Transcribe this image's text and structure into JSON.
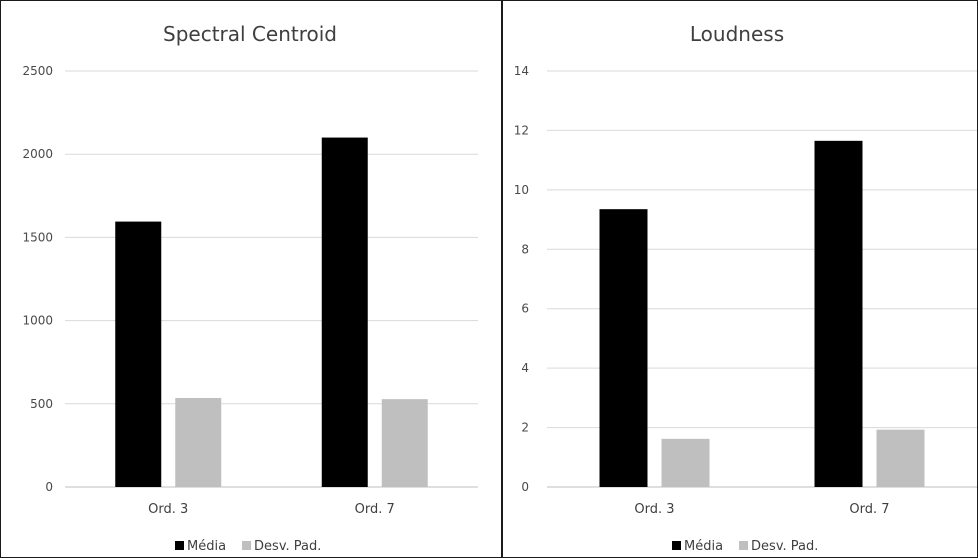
{
  "chart_data": [
    {
      "type": "bar",
      "title": "Spectral Centroid",
      "categories": [
        "Ord. 3",
        "Ord. 7"
      ],
      "series": [
        {
          "name": "Média",
          "values": [
            1595,
            2100
          ],
          "color": "#000000"
        },
        {
          "name": "Desv. Pad.",
          "values": [
            535,
            528
          ],
          "color": "#bfbfbf"
        }
      ],
      "ylim": [
        0,
        2500
      ],
      "yticks": [
        "0",
        "500",
        "1000",
        "1500",
        "2000",
        "2500"
      ],
      "grid": true,
      "legend": "bottom"
    },
    {
      "type": "bar",
      "title": "Loudness",
      "categories": [
        "Ord. 3",
        "Ord. 7"
      ],
      "series": [
        {
          "name": "Média",
          "values": [
            9.35,
            11.65
          ],
          "color": "#000000"
        },
        {
          "name": "Desv. Pad.",
          "values": [
            1.62,
            1.93
          ],
          "color": "#bfbfbf"
        }
      ],
      "ylim": [
        0,
        14
      ],
      "yticks": [
        "0",
        "2",
        "4",
        "6",
        "8",
        "10",
        "12",
        "14"
      ],
      "grid": true,
      "legend": "bottom"
    }
  ]
}
